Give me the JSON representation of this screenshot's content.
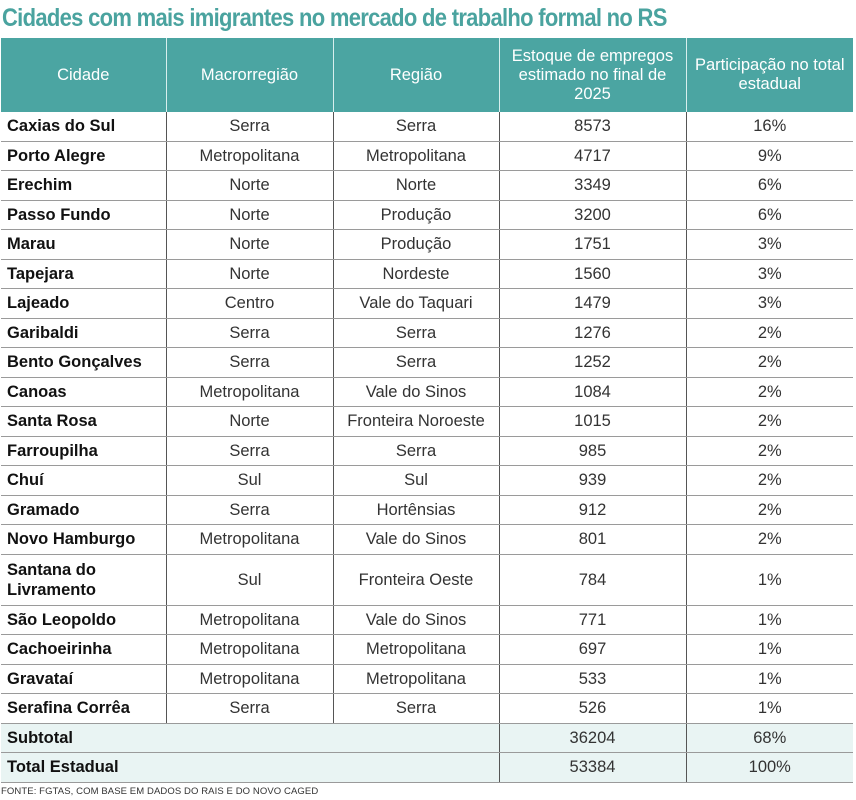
{
  "title": "Cidades com mais imigrantes no mercado de trabalho formal no RS",
  "table": {
    "headers": [
      "Cidade",
      "Macrorregião",
      "Região",
      "Estoque de empregos estimado no final de 2025",
      "Participação no total estadual"
    ],
    "rows": [
      {
        "city": "Caxias do Sul",
        "macro": "Serra",
        "region": "Serra",
        "jobs": "8573",
        "share": "16%"
      },
      {
        "city": "Porto Alegre",
        "macro": "Metropolitana",
        "region": "Metropolitana",
        "jobs": "4717",
        "share": "9%"
      },
      {
        "city": "Erechim",
        "macro": "Norte",
        "region": "Norte",
        "jobs": "3349",
        "share": "6%"
      },
      {
        "city": "Passo Fundo",
        "macro": "Norte",
        "region": "Produção",
        "jobs": "3200",
        "share": "6%"
      },
      {
        "city": "Marau",
        "macro": "Norte",
        "region": "Produção",
        "jobs": "1751",
        "share": "3%"
      },
      {
        "city": "Tapejara",
        "macro": "Norte",
        "region": "Nordeste",
        "jobs": "1560",
        "share": "3%"
      },
      {
        "city": "Lajeado",
        "macro": "Centro",
        "region": "Vale do Taquari",
        "jobs": "1479",
        "share": "3%"
      },
      {
        "city": "Garibaldi",
        "macro": "Serra",
        "region": "Serra",
        "jobs": "1276",
        "share": "2%"
      },
      {
        "city": "Bento Gonçalves",
        "macro": "Serra",
        "region": "Serra",
        "jobs": "1252",
        "share": "2%"
      },
      {
        "city": "Canoas",
        "macro": "Metropolitana",
        "region": "Vale do Sinos",
        "jobs": "1084",
        "share": "2%"
      },
      {
        "city": "Santa Rosa",
        "macro": "Norte",
        "region": "Fronteira Noroeste",
        "jobs": "1015",
        "share": "2%"
      },
      {
        "city": "Farroupilha",
        "macro": "Serra",
        "region": "Serra",
        "jobs": "985",
        "share": "2%"
      },
      {
        "city": "Chuí",
        "macro": "Sul",
        "region": "Sul",
        "jobs": "939",
        "share": "2%"
      },
      {
        "city": "Gramado",
        "macro": "Serra",
        "region": "Hortênsias",
        "jobs": "912",
        "share": "2%"
      },
      {
        "city": "Novo Hamburgo",
        "macro": "Metropolitana",
        "region": "Vale do Sinos",
        "jobs": "801",
        "share": "2%"
      },
      {
        "city": "Santana do Livramento",
        "macro": "Sul",
        "region": "Fronteira Oeste",
        "jobs": "784",
        "share": "1%"
      },
      {
        "city": "São Leopoldo",
        "macro": "Metropolitana",
        "region": "Vale do Sinos",
        "jobs": "771",
        "share": "1%"
      },
      {
        "city": "Cachoeirinha",
        "macro": "Metropolitana",
        "region": "Metropolitana",
        "jobs": "697",
        "share": "1%"
      },
      {
        "city": "Gravataí",
        "macro": "Metropolitana",
        "region": "Metropolitana",
        "jobs": "533",
        "share": "1%"
      },
      {
        "city": "Serafina Corrêa",
        "macro": "Serra",
        "region": "Serra",
        "jobs": "526",
        "share": "1%"
      }
    ],
    "subtotal": {
      "label": "Subtotal",
      "jobs": "36204",
      "share": "68%"
    },
    "total": {
      "label": "Total Estadual",
      "jobs": "53384",
      "share": "100%"
    }
  },
  "source": "FONTE: FGTAS, COM BASE EM DADOS DO RAIS E DO NOVO CAGED",
  "colors": {
    "accent": "#4ba5a2",
    "title": "#4aa39f",
    "summary_bg": "#e9f4f3"
  }
}
